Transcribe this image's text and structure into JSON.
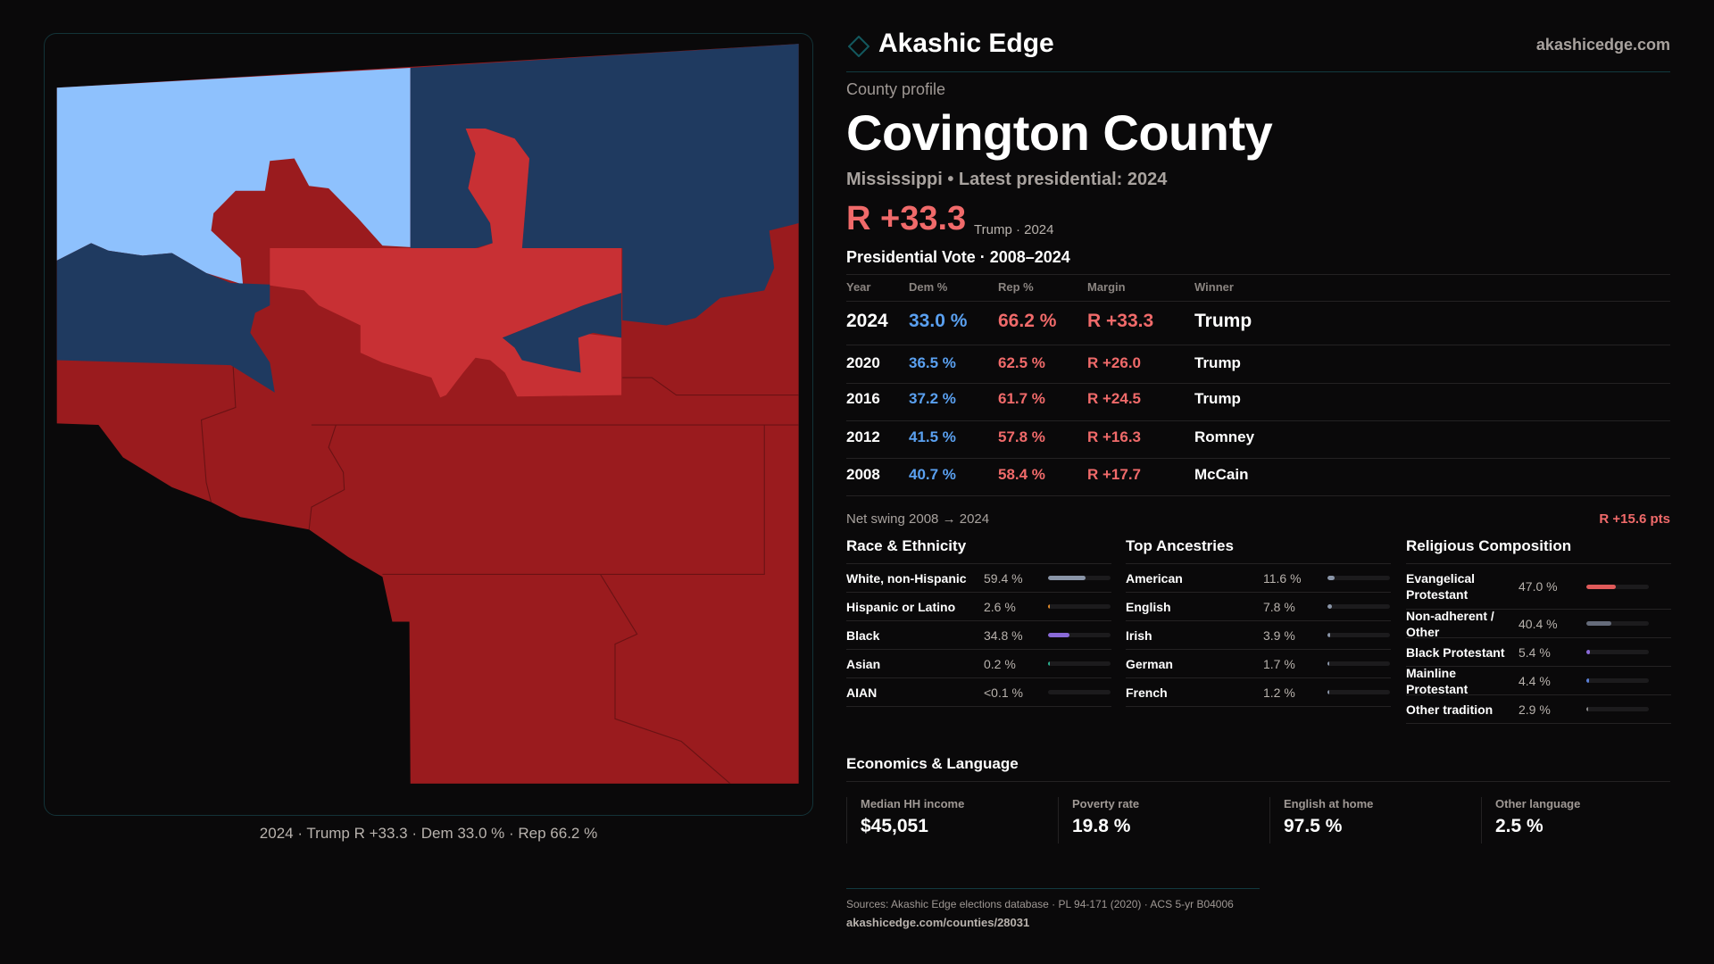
{
  "colors": {
    "dem_strong": "#1f3a60",
    "dem_light": "#8ec1fd",
    "rep_strong": "#9a1b1e",
    "rep_light": "#c83034",
    "accent": "#f06a6a",
    "blue_text": "#5aa0f0"
  },
  "map": {
    "caption": "2024 · Trump R +33.3 · Dem 33.0 % · Rep 66.2 %"
  },
  "header": {
    "brand": "Akashic Edge",
    "site": "akashicedge.com",
    "logo_icon": "diamond-icon"
  },
  "profile": {
    "eyebrow": "County profile",
    "title": "Covington County",
    "subtitle": "Mississippi • Latest presidential: 2024",
    "margin": "R +33.3",
    "margin_sub": "Trump · 2024"
  },
  "vote": {
    "title": "Presidential Vote · 2008–2024",
    "headers": [
      "Year",
      "Dem %",
      "Rep %",
      "Margin",
      "Winner"
    ],
    "rows": [
      {
        "year": "2024",
        "dem": "33.0 %",
        "rep": "66.2 %",
        "margin": "R +33.3",
        "winner": "Trump"
      },
      {
        "year": "2020",
        "dem": "36.5 %",
        "rep": "62.5 %",
        "margin": "R +26.0",
        "winner": "Trump"
      },
      {
        "year": "2016",
        "dem": "37.2 %",
        "rep": "61.7 %",
        "margin": "R +24.5",
        "winner": "Trump"
      },
      {
        "year": "2012",
        "dem": "41.5 %",
        "rep": "57.8 %",
        "margin": "R +16.3",
        "winner": "Romney"
      },
      {
        "year": "2008",
        "dem": "40.7 %",
        "rep": "58.4 %",
        "margin": "R +17.7",
        "winner": "McCain"
      }
    ],
    "swing_label": "Net swing 2008 → 2024",
    "swing_value": "R +15.6 pts"
  },
  "race": {
    "title": "Race & Ethnicity",
    "items": [
      {
        "label": "White, non-Hispanic",
        "value": "59.4 %",
        "share": 59.4,
        "color": "#8a95a8"
      },
      {
        "label": "Hispanic or Latino",
        "value": "2.6 %",
        "share": 2.6,
        "color": "#e08a2a"
      },
      {
        "label": "Black",
        "value": "34.8 %",
        "share": 34.8,
        "color": "#8a6ad8"
      },
      {
        "label": "Asian",
        "value": "0.2 %",
        "share": 0.2,
        "color": "#2ab090"
      },
      {
        "label": "AIAN",
        "value": "<0.1 %",
        "share": 0,
        "color": "#555"
      }
    ]
  },
  "ancestry": {
    "title": "Top Ancestries",
    "items": [
      {
        "label": "American",
        "value": "11.6 %",
        "share": 11.6,
        "color": "#8a95a8"
      },
      {
        "label": "English",
        "value": "7.8 %",
        "share": 7.8,
        "color": "#8a95a8"
      },
      {
        "label": "Irish",
        "value": "3.9 %",
        "share": 3.9,
        "color": "#8a95a8"
      },
      {
        "label": "German",
        "value": "1.7 %",
        "share": 1.7,
        "color": "#8a95a8"
      },
      {
        "label": "French",
        "value": "1.2 %",
        "share": 1.2,
        "color": "#8a95a8"
      }
    ]
  },
  "religion": {
    "title": "Religious Composition",
    "items": [
      {
        "label": "Evangelical Protestant",
        "value": "47.0 %",
        "share": 47.0,
        "color": "#e05a5a"
      },
      {
        "label": "Non-adherent / Other",
        "value": "40.4 %",
        "share": 40.4,
        "color": "#656b7a"
      },
      {
        "label": "Black Protestant",
        "value": "5.4 %",
        "share": 5.4,
        "color": "#8a6ad8"
      },
      {
        "label": "Mainline Protestant",
        "value": "4.4 %",
        "share": 4.4,
        "color": "#5a80d8"
      },
      {
        "label": "Other tradition",
        "value": "2.9 %",
        "share": 2.9,
        "color": "#888888"
      }
    ]
  },
  "economics": {
    "title": "Economics & Language",
    "cards": [
      {
        "label": "Median HH income",
        "value": "$45,051"
      },
      {
        "label": "Poverty rate",
        "value": "19.8 %"
      },
      {
        "label": "English at home",
        "value": "97.5 %"
      },
      {
        "label": "Other language",
        "value": "2.5 %"
      }
    ]
  },
  "footer": {
    "sources": "Sources: Akashic Edge elections database · PL 94-171 (2020) · ACS 5-yr B04006",
    "url": "akashicedge.com/counties/28031"
  }
}
